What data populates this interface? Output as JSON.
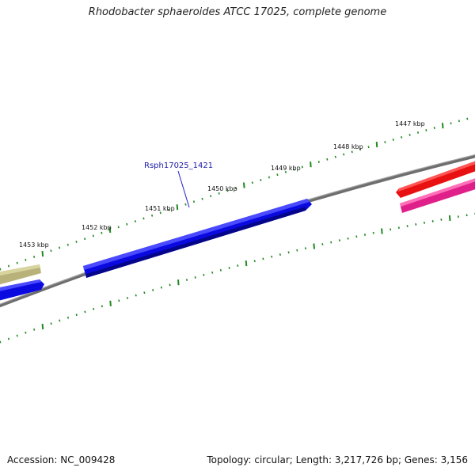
{
  "title": "Rhodobacter sphaeroides ATCC 17025, complete genome",
  "footer": {
    "accession": "Accession: NC_009428",
    "stats": "Topology: circular; Length: 3,217,726 bp; Genes: 3,156"
  },
  "ruler": {
    "labels": [
      "1453 kbp",
      "1452 kbp",
      "1451 kbp",
      "1450 kbp",
      "1449 kbp",
      "1448 kbp",
      "1447 kbp"
    ]
  },
  "genes": {
    "highlighted_label": "Rsph17025_1421"
  },
  "colors": {
    "backbone": "#7a7a7a",
    "tick": "#1f8a1f",
    "gene_blue": "#0a0ae0",
    "gene_khaki": "#b8b27a",
    "gene_red": "#e81010",
    "gene_pink": "#e0208a",
    "label_line": "#2222cc"
  }
}
